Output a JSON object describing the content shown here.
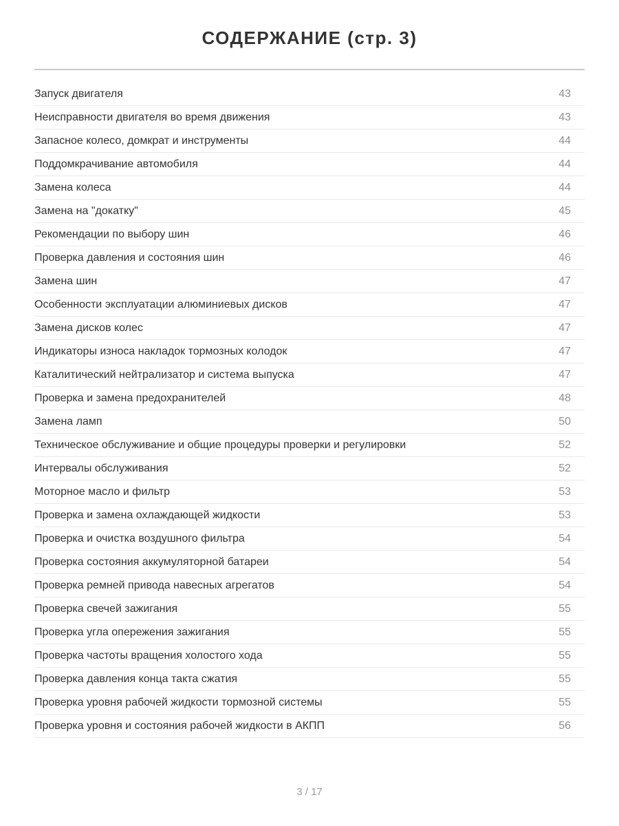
{
  "header": {
    "title": "СОДЕРЖАНИЕ (стр. 3)"
  },
  "toc": {
    "entries": [
      {
        "label": "Запуск двигателя",
        "page": "43"
      },
      {
        "label": "Неисправности двигателя во время движения",
        "page": "43"
      },
      {
        "label": "Запасное колесо, домкрат и инструменты",
        "page": "44"
      },
      {
        "label": "Поддомкрачивание автомобиля",
        "page": "44"
      },
      {
        "label": "Замена колеса",
        "page": "44"
      },
      {
        "label": "Замена на \"докатку\"",
        "page": "45"
      },
      {
        "label": "Рекомендации по выбору шин",
        "page": "46"
      },
      {
        "label": "Проверка давления и состояния шин",
        "page": "46"
      },
      {
        "label": "Замена шин",
        "page": "47"
      },
      {
        "label": "Особенности эксплуатации алюминиевых дисков",
        "page": "47"
      },
      {
        "label": "Замена дисков колес",
        "page": "47"
      },
      {
        "label": "Индикаторы износа накладок тормозных колодок",
        "page": "47"
      },
      {
        "label": "Каталитический нейтрализатор и система выпуска",
        "page": "47"
      },
      {
        "label": "Проверка и замена предохранителей",
        "page": "48"
      },
      {
        "label": "Замена ламп",
        "page": "50"
      },
      {
        "label": "Техническое обслуживание и общие процедуры проверки и регулировки",
        "page": "52"
      },
      {
        "label": "Интервалы обслуживания",
        "page": "52"
      },
      {
        "label": "Моторное масло и фильтр",
        "page": "53"
      },
      {
        "label": "Проверка и замена охлаждающей жидкости",
        "page": "53"
      },
      {
        "label": "Проверка и очистка воздушного фильтра",
        "page": "54"
      },
      {
        "label": "Проверка состояния аккумуляторной батареи",
        "page": "54"
      },
      {
        "label": "Проверка ремней привода навесных агрегатов",
        "page": "54"
      },
      {
        "label": "Проверка свечей зажигания",
        "page": "55"
      },
      {
        "label": "Проверка угла опережения зажигания",
        "page": "55"
      },
      {
        "label": "Проверка частоты вращения холостого хода",
        "page": "55"
      },
      {
        "label": "Проверка давления конца такта сжатия",
        "page": "55"
      },
      {
        "label": "Проверка уровня рабочей жидкости тормозной системы",
        "page": "55"
      },
      {
        "label": "Проверка уровня и состояния рабочей жидкости в АКПП",
        "page": "56"
      }
    ]
  },
  "footer": {
    "page_indicator": "3 / 17"
  },
  "colors": {
    "background": "#ffffff",
    "title_text": "#333333",
    "entry_text": "#333333",
    "page_number": "#8f8f8f",
    "row_divider": "#e9e9e9",
    "header_rule": "#c8c8c8",
    "footer_text": "#9b9b9b"
  }
}
